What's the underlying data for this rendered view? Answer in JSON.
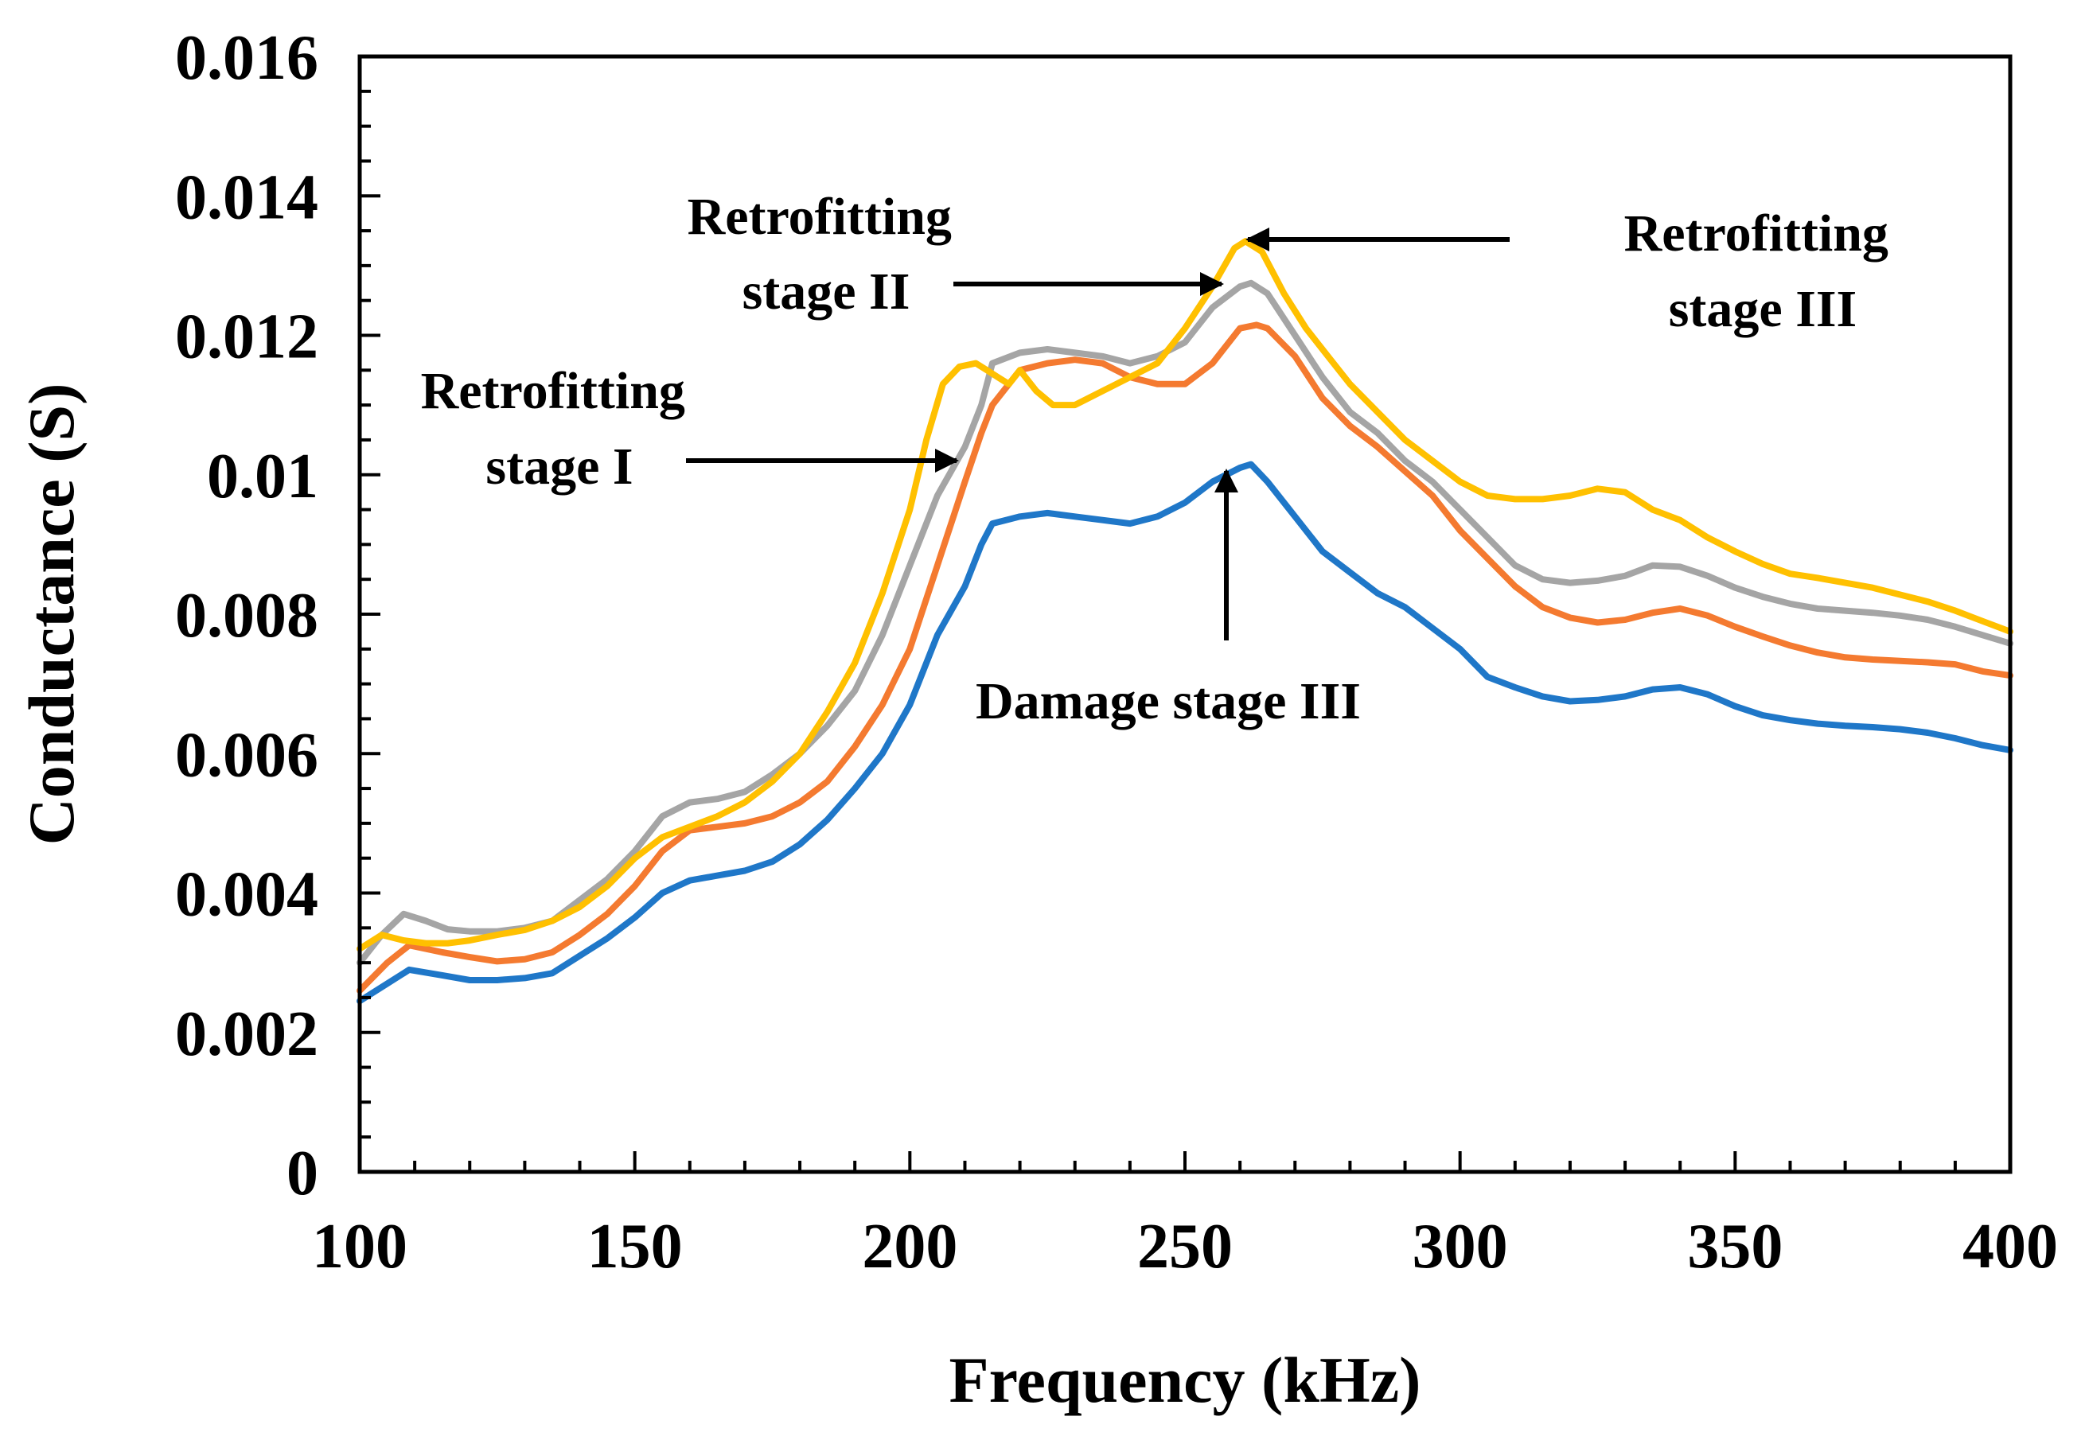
{
  "chart_data": {
    "type": "line",
    "title": "",
    "xlabel": "Frequency (kHz)",
    "ylabel": "Conductance (S)",
    "xlim": [
      100,
      400
    ],
    "ylim": [
      0,
      0.016
    ],
    "xticks": [
      100,
      150,
      200,
      250,
      300,
      350,
      400
    ],
    "xtick_labels": [
      "100",
      "150",
      "200",
      "250",
      "300",
      "350",
      "400"
    ],
    "yticks": [
      0,
      0.002,
      0.004,
      0.006,
      0.008,
      0.01,
      0.012,
      0.014,
      0.016
    ],
    "ytick_labels": [
      "0",
      "0.002",
      "0.004",
      "0.006",
      "0.008",
      "0.01",
      "0.012",
      "0.014",
      "0.016"
    ],
    "grid": false,
    "legend": "none",
    "series": [
      {
        "color": "#1f77c8",
        "points": [
          [
            100,
            0.00245
          ],
          [
            105,
            0.0027
          ],
          [
            109,
            0.0029
          ],
          [
            115,
            0.00282
          ],
          [
            120,
            0.00275
          ],
          [
            125,
            0.00275
          ],
          [
            130,
            0.00278
          ],
          [
            135,
            0.00285
          ],
          [
            140,
            0.0031
          ],
          [
            145,
            0.00335
          ],
          [
            150,
            0.00365
          ],
          [
            155,
            0.004
          ],
          [
            160,
            0.00418
          ],
          [
            165,
            0.00425
          ],
          [
            170,
            0.00432
          ],
          [
            175,
            0.00445
          ],
          [
            180,
            0.0047
          ],
          [
            185,
            0.00505
          ],
          [
            190,
            0.0055
          ],
          [
            195,
            0.006
          ],
          [
            200,
            0.0067
          ],
          [
            205,
            0.0077
          ],
          [
            210,
            0.0084
          ],
          [
            213,
            0.009
          ],
          [
            215,
            0.0093
          ],
          [
            220,
            0.0094
          ],
          [
            225,
            0.00945
          ],
          [
            230,
            0.0094
          ],
          [
            235,
            0.00935
          ],
          [
            240,
            0.0093
          ],
          [
            245,
            0.0094
          ],
          [
            250,
            0.0096
          ],
          [
            255,
            0.0099
          ],
          [
            260,
            0.0101
          ],
          [
            262,
            0.01015
          ],
          [
            265,
            0.0099
          ],
          [
            270,
            0.0094
          ],
          [
            275,
            0.0089
          ],
          [
            280,
            0.0086
          ],
          [
            285,
            0.0083
          ],
          [
            290,
            0.0081
          ],
          [
            295,
            0.0078
          ],
          [
            300,
            0.0075
          ],
          [
            305,
            0.0071
          ],
          [
            310,
            0.00695
          ],
          [
            315,
            0.00682
          ],
          [
            320,
            0.00675
          ],
          [
            325,
            0.00677
          ],
          [
            330,
            0.00682
          ],
          [
            335,
            0.00692
          ],
          [
            340,
            0.00695
          ],
          [
            345,
            0.00685
          ],
          [
            350,
            0.00668
          ],
          [
            355,
            0.00655
          ],
          [
            360,
            0.00648
          ],
          [
            365,
            0.00643
          ],
          [
            370,
            0.0064
          ],
          [
            375,
            0.00638
          ],
          [
            380,
            0.00635
          ],
          [
            385,
            0.0063
          ],
          [
            390,
            0.00622
          ],
          [
            395,
            0.00612
          ],
          [
            400,
            0.00605
          ]
        ]
      },
      {
        "color": "#f47a30",
        "points": [
          [
            100,
            0.0026
          ],
          [
            105,
            0.003
          ],
          [
            109,
            0.00325
          ],
          [
            115,
            0.00315
          ],
          [
            120,
            0.00308
          ],
          [
            125,
            0.00302
          ],
          [
            130,
            0.00305
          ],
          [
            135,
            0.00315
          ],
          [
            140,
            0.0034
          ],
          [
            145,
            0.0037
          ],
          [
            150,
            0.0041
          ],
          [
            155,
            0.0046
          ],
          [
            160,
            0.0049
          ],
          [
            165,
            0.00495
          ],
          [
            170,
            0.005
          ],
          [
            175,
            0.0051
          ],
          [
            180,
            0.0053
          ],
          [
            185,
            0.0056
          ],
          [
            190,
            0.0061
          ],
          [
            195,
            0.0067
          ],
          [
            200,
            0.0075
          ],
          [
            205,
            0.0087
          ],
          [
            210,
            0.0099
          ],
          [
            213,
            0.0106
          ],
          [
            215,
            0.011
          ],
          [
            220,
            0.0115
          ],
          [
            225,
            0.0116
          ],
          [
            230,
            0.01165
          ],
          [
            235,
            0.0116
          ],
          [
            240,
            0.0114
          ],
          [
            245,
            0.0113
          ],
          [
            250,
            0.0113
          ],
          [
            255,
            0.0116
          ],
          [
            260,
            0.0121
          ],
          [
            263,
            0.01215
          ],
          [
            265,
            0.0121
          ],
          [
            270,
            0.0117
          ],
          [
            275,
            0.0111
          ],
          [
            280,
            0.0107
          ],
          [
            285,
            0.0104
          ],
          [
            290,
            0.01005
          ],
          [
            295,
            0.0097
          ],
          [
            300,
            0.0092
          ],
          [
            305,
            0.0088
          ],
          [
            310,
            0.0084
          ],
          [
            315,
            0.0081
          ],
          [
            320,
            0.00795
          ],
          [
            325,
            0.00788
          ],
          [
            330,
            0.00792
          ],
          [
            335,
            0.00802
          ],
          [
            340,
            0.00808
          ],
          [
            345,
            0.00798
          ],
          [
            350,
            0.00782
          ],
          [
            355,
            0.00768
          ],
          [
            360,
            0.00755
          ],
          [
            365,
            0.00745
          ],
          [
            370,
            0.00738
          ],
          [
            375,
            0.00735
          ],
          [
            380,
            0.00733
          ],
          [
            385,
            0.00731
          ],
          [
            390,
            0.00728
          ],
          [
            395,
            0.00718
          ],
          [
            400,
            0.00712
          ]
        ]
      },
      {
        "color": "#a5a5a5",
        "points": [
          [
            100,
            0.003
          ],
          [
            104,
            0.0034
          ],
          [
            108,
            0.0037
          ],
          [
            112,
            0.0036
          ],
          [
            116,
            0.00348
          ],
          [
            120,
            0.00345
          ],
          [
            125,
            0.00345
          ],
          [
            130,
            0.0035
          ],
          [
            135,
            0.0036
          ],
          [
            140,
            0.0039
          ],
          [
            145,
            0.0042
          ],
          [
            150,
            0.0046
          ],
          [
            155,
            0.0051
          ],
          [
            160,
            0.0053
          ],
          [
            165,
            0.00535
          ],
          [
            170,
            0.00545
          ],
          [
            175,
            0.0057
          ],
          [
            180,
            0.006
          ],
          [
            185,
            0.0064
          ],
          [
            190,
            0.0069
          ],
          [
            195,
            0.0077
          ],
          [
            200,
            0.0087
          ],
          [
            205,
            0.0097
          ],
          [
            210,
            0.0104
          ],
          [
            213,
            0.011
          ],
          [
            215,
            0.0116
          ],
          [
            220,
            0.01175
          ],
          [
            225,
            0.0118
          ],
          [
            230,
            0.01175
          ],
          [
            235,
            0.0117
          ],
          [
            240,
            0.0116
          ],
          [
            245,
            0.0117
          ],
          [
            250,
            0.0119
          ],
          [
            255,
            0.0124
          ],
          [
            260,
            0.0127
          ],
          [
            262,
            0.01275
          ],
          [
            265,
            0.0126
          ],
          [
            270,
            0.012
          ],
          [
            275,
            0.0114
          ],
          [
            280,
            0.0109
          ],
          [
            285,
            0.0106
          ],
          [
            290,
            0.0102
          ],
          [
            295,
            0.0099
          ],
          [
            300,
            0.0095
          ],
          [
            305,
            0.0091
          ],
          [
            310,
            0.0087
          ],
          [
            315,
            0.0085
          ],
          [
            320,
            0.00845
          ],
          [
            325,
            0.00848
          ],
          [
            330,
            0.00855
          ],
          [
            335,
            0.0087
          ],
          [
            340,
            0.00868
          ],
          [
            345,
            0.00855
          ],
          [
            350,
            0.00838
          ],
          [
            355,
            0.00825
          ],
          [
            360,
            0.00815
          ],
          [
            365,
            0.00808
          ],
          [
            370,
            0.00805
          ],
          [
            375,
            0.00802
          ],
          [
            380,
            0.00798
          ],
          [
            385,
            0.00792
          ],
          [
            390,
            0.00782
          ],
          [
            395,
            0.0077
          ],
          [
            400,
            0.00758
          ]
        ]
      },
      {
        "color": "#ffc000",
        "points": [
          [
            100,
            0.0032
          ],
          [
            104,
            0.0034
          ],
          [
            108,
            0.00332
          ],
          [
            112,
            0.00328
          ],
          [
            116,
            0.00328
          ],
          [
            120,
            0.00332
          ],
          [
            125,
            0.0034
          ],
          [
            130,
            0.00347
          ],
          [
            135,
            0.0036
          ],
          [
            140,
            0.0038
          ],
          [
            145,
            0.0041
          ],
          [
            150,
            0.0045
          ],
          [
            155,
            0.0048
          ],
          [
            160,
            0.00495
          ],
          [
            165,
            0.0051
          ],
          [
            170,
            0.0053
          ],
          [
            175,
            0.0056
          ],
          [
            180,
            0.006
          ],
          [
            185,
            0.0066
          ],
          [
            190,
            0.0073
          ],
          [
            195,
            0.0083
          ],
          [
            200,
            0.0095
          ],
          [
            203,
            0.0105
          ],
          [
            206,
            0.0113
          ],
          [
            209,
            0.01155
          ],
          [
            212,
            0.0116
          ],
          [
            214,
            0.0115
          ],
          [
            216,
            0.0114
          ],
          [
            218,
            0.0113
          ],
          [
            220,
            0.0115
          ],
          [
            223,
            0.0112
          ],
          [
            226,
            0.011
          ],
          [
            230,
            0.011
          ],
          [
            235,
            0.0112
          ],
          [
            240,
            0.0114
          ],
          [
            245,
            0.0116
          ],
          [
            250,
            0.0121
          ],
          [
            255,
            0.0127
          ],
          [
            259,
            0.01325
          ],
          [
            261,
            0.01335
          ],
          [
            264,
            0.0132
          ],
          [
            268,
            0.0126
          ],
          [
            272,
            0.0121
          ],
          [
            276,
            0.0117
          ],
          [
            280,
            0.0113
          ],
          [
            285,
            0.0109
          ],
          [
            290,
            0.0105
          ],
          [
            295,
            0.0102
          ],
          [
            300,
            0.0099
          ],
          [
            305,
            0.0097
          ],
          [
            310,
            0.00965
          ],
          [
            315,
            0.00965
          ],
          [
            320,
            0.0097
          ],
          [
            325,
            0.0098
          ],
          [
            330,
            0.00975
          ],
          [
            335,
            0.0095
          ],
          [
            340,
            0.00935
          ],
          [
            345,
            0.0091
          ],
          [
            350,
            0.0089
          ],
          [
            355,
            0.00872
          ],
          [
            360,
            0.00858
          ],
          [
            365,
            0.00852
          ],
          [
            370,
            0.00845
          ],
          [
            375,
            0.00838
          ],
          [
            380,
            0.00828
          ],
          [
            385,
            0.00818
          ],
          [
            390,
            0.00805
          ],
          [
            395,
            0.0079
          ],
          [
            400,
            0.00775
          ]
        ]
      }
    ],
    "annotations": [
      {
        "lines": [
          "Retrofitting",
          "stage I"
        ]
      },
      {
        "lines": [
          "Retrofitting",
          "stage II"
        ]
      },
      {
        "lines": [
          "Retrofitting",
          "stage III"
        ]
      },
      {
        "lines": [
          "Damage stage III"
        ]
      }
    ]
  }
}
